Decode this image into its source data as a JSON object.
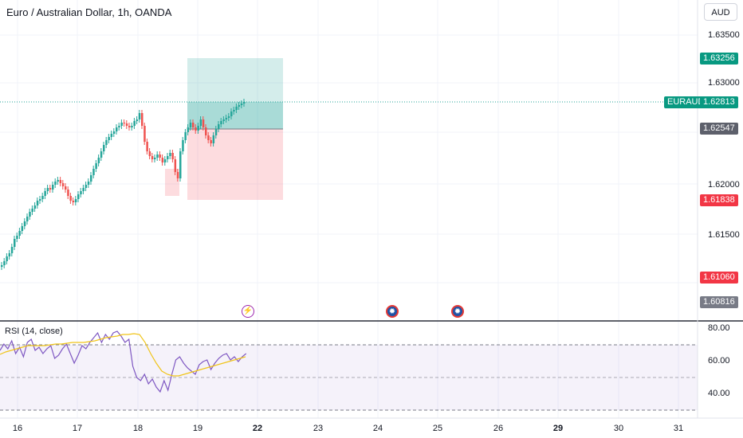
{
  "header": {
    "title": "Euro / Australian Dollar, 1h, OANDA",
    "currency_button": "AUD"
  },
  "price_axis": {
    "labels": [
      "1.63500",
      "1.63000",
      "1.62000",
      "1.61500"
    ],
    "tags": {
      "target": "1.63256",
      "symbol": "EURAUD",
      "current": "1.62813",
      "entry": "1.62547",
      "stop": "1.61838",
      "low_red": "1.61060",
      "low_gray": "1.60816"
    }
  },
  "rsi": {
    "label": "RSI (14, close)",
    "levels": [
      "80.00",
      "60.00",
      "40.00"
    ]
  },
  "time_axis": {
    "labels": [
      "16",
      "17",
      "18",
      "19",
      "22",
      "23",
      "24",
      "25",
      "26",
      "29",
      "30",
      "31"
    ],
    "bold": [
      "22",
      "29"
    ]
  },
  "colors": {
    "up": "#26a69a",
    "down": "#ef5350",
    "target_zone": "#26a69a",
    "stop_zone": "#f7525f",
    "rsi_line": "#7e57c2",
    "rsi_ma": "#f0c419"
  },
  "icons": [
    "lightning-icon",
    "globe-icon",
    "globe-icon"
  ]
}
